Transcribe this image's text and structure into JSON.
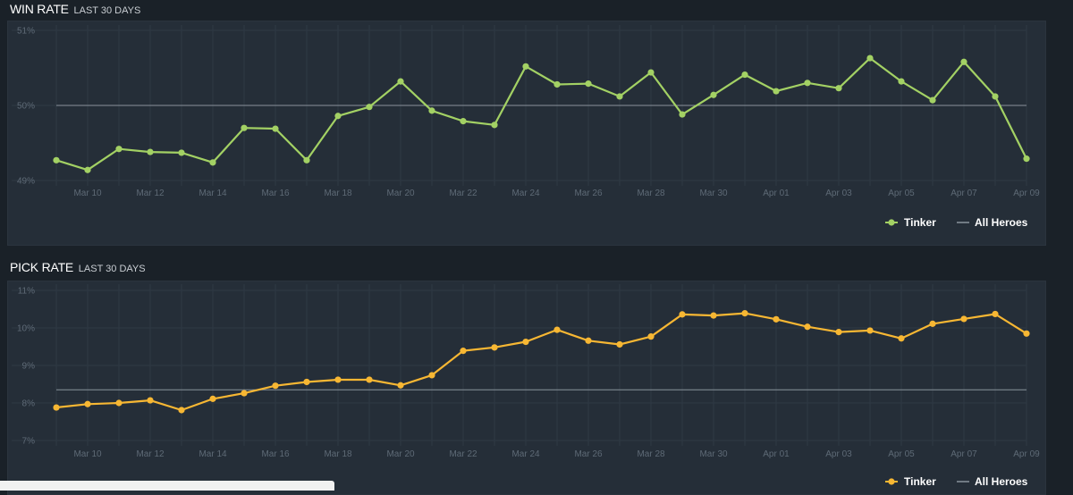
{
  "chart_data": [
    {
      "type": "line",
      "title": "WIN RATE",
      "subtitle": "LAST 30 DAYS",
      "xlabels": [
        "Mar 10",
        "Mar 12",
        "Mar 14",
        "Mar 16",
        "Mar 18",
        "Mar 20",
        "Mar 22",
        "Mar 24",
        "Mar 26",
        "Mar 28",
        "Mar 30",
        "Apr 01",
        "Apr 03",
        "Apr 05",
        "Apr 07",
        "Apr 09"
      ],
      "yticks": [
        "49%",
        "50%",
        "51%"
      ],
      "ylim": [
        49,
        51
      ],
      "series": [
        {
          "name": "Tinker",
          "color": "#a3d164",
          "values": [
            49.27,
            49.14,
            49.42,
            49.38,
            49.37,
            49.24,
            49.7,
            49.69,
            49.27,
            49.86,
            49.98,
            50.32,
            49.93,
            49.79,
            49.74,
            50.52,
            50.28,
            50.29,
            50.12,
            50.44,
            49.88,
            50.14,
            50.41,
            50.19,
            50.3,
            50.23,
            50.63,
            50.32,
            50.07,
            50.58,
            50.12,
            49.29
          ]
        },
        {
          "name": "All Heroes",
          "color": "#8a939c",
          "value": 50.0
        }
      ],
      "legend": "bottom-right",
      "grid": true
    },
    {
      "type": "line",
      "title": "PICK RATE",
      "subtitle": "LAST 30 DAYS",
      "xlabels": [
        "Mar 10",
        "Mar 12",
        "Mar 14",
        "Mar 16",
        "Mar 18",
        "Mar 20",
        "Mar 22",
        "Mar 24",
        "Mar 26",
        "Mar 28",
        "Mar 30",
        "Apr 01",
        "Apr 03",
        "Apr 05",
        "Apr 07",
        "Apr 09"
      ],
      "yticks": [
        "7%",
        "8%",
        "9%",
        "10%",
        "11%"
      ],
      "ylim": [
        7,
        11
      ],
      "series": [
        {
          "name": "Tinker",
          "color": "#f7b733",
          "values": [
            7.88,
            7.97,
            8.0,
            8.07,
            7.81,
            8.11,
            8.26,
            8.46,
            8.56,
            8.62,
            8.62,
            8.47,
            8.74,
            9.39,
            9.48,
            9.63,
            9.95,
            9.66,
            9.56,
            9.77,
            10.36,
            10.33,
            10.39,
            10.23,
            10.03,
            9.89,
            9.93,
            9.72,
            10.11,
            10.24,
            10.37,
            9.85
          ]
        },
        {
          "name": "All Heroes",
          "color": "#8a939c",
          "value": 8.35
        }
      ],
      "legend": "bottom-right",
      "grid": true
    }
  ]
}
